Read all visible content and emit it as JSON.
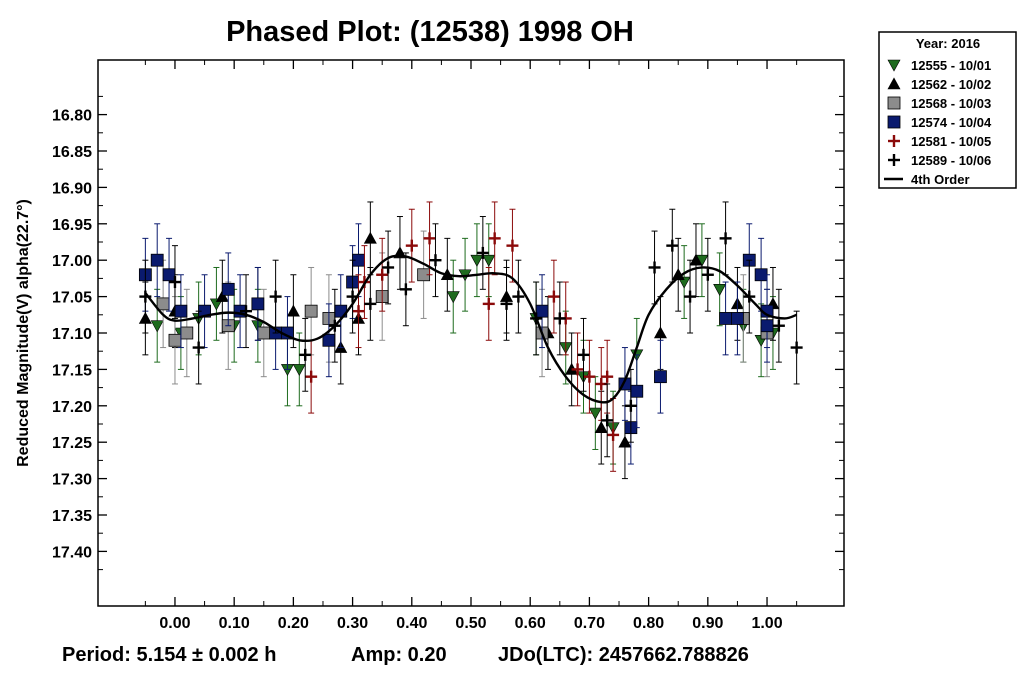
{
  "chart_data": {
    "type": "scatter",
    "title": "Phased Plot: (12538) 1998 OH",
    "xlabel": "",
    "ylabel": "Reduced Magnitude(V) alpha(22.7°)",
    "xlim": [
      -0.13,
      1.13
    ],
    "ylim": [
      17.475,
      16.725
    ],
    "y_inverted": true,
    "x_ticks": [
      "0.00",
      "0.10",
      "0.20",
      "0.30",
      "0.40",
      "0.50",
      "0.60",
      "0.70",
      "0.80",
      "0.90",
      "1.00"
    ],
    "y_ticks": [
      "16.80",
      "16.85",
      "16.90",
      "16.95",
      "17.00",
      "17.05",
      "17.10",
      "17.15",
      "17.20",
      "17.25",
      "17.30",
      "17.35",
      "17.40"
    ],
    "legend": {
      "title": "Year: 2016",
      "placement": "outside-top-right",
      "entries": [
        {
          "label": "12555 - 10/01",
          "marker": "triangle-down",
          "color": "#1e6b1e"
        },
        {
          "label": "12562 - 10/02",
          "marker": "triangle-up",
          "color": "#000000"
        },
        {
          "label": "12568 - 10/03",
          "marker": "square",
          "color": "#8c8c8c"
        },
        {
          "label": "12574 - 10/04",
          "marker": "square",
          "color": "#0a1a6e"
        },
        {
          "label": "12581 - 10/05",
          "marker": "plus",
          "color": "#8b0a0a"
        },
        {
          "label": "12589 - 10/06",
          "marker": "plus",
          "color": "#000000"
        },
        {
          "label": "4th Order",
          "marker": "line",
          "color": "#000000"
        }
      ]
    },
    "series": [
      {
        "name": "12555 - 10/01",
        "marker": "triangle-down",
        "color": "#1e6b1e",
        "err": 0.05,
        "points": [
          [
            -0.03,
            17.09
          ],
          [
            0.01,
            17.1
          ],
          [
            0.04,
            17.08
          ],
          [
            0.07,
            17.06
          ],
          [
            0.1,
            17.09
          ],
          [
            0.14,
            17.09
          ],
          [
            0.19,
            17.15
          ],
          [
            0.21,
            17.15
          ],
          [
            0.47,
            17.05
          ],
          [
            0.49,
            17.02
          ],
          [
            0.51,
            17.0
          ],
          [
            0.53,
            17.0
          ],
          [
            0.61,
            17.08
          ],
          [
            0.66,
            17.12
          ],
          [
            0.69,
            17.16
          ],
          [
            0.71,
            17.21
          ],
          [
            0.74,
            17.23
          ],
          [
            0.78,
            17.13
          ],
          [
            0.86,
            17.03
          ],
          [
            0.89,
            17.0
          ],
          [
            0.92,
            17.04
          ],
          [
            0.96,
            17.09
          ],
          [
            0.99,
            17.11
          ],
          [
            1.01,
            17.1
          ]
        ]
      },
      {
        "name": "12562 - 10/02",
        "marker": "triangle-up",
        "color": "#000000",
        "err": 0.05,
        "points": [
          [
            -0.05,
            17.08
          ],
          [
            0.0,
            17.07
          ],
          [
            0.08,
            17.05
          ],
          [
            0.14,
            17.06
          ],
          [
            0.2,
            17.07
          ],
          [
            0.28,
            17.12
          ],
          [
            0.31,
            17.08
          ],
          [
            0.33,
            16.97
          ],
          [
            0.38,
            16.99
          ],
          [
            0.46,
            17.02
          ],
          [
            0.56,
            17.05
          ],
          [
            0.63,
            17.1
          ],
          [
            0.67,
            17.15
          ],
          [
            0.72,
            17.23
          ],
          [
            0.76,
            17.25
          ],
          [
            0.82,
            17.1
          ],
          [
            0.85,
            17.02
          ],
          [
            0.88,
            17.0
          ],
          [
            0.95,
            17.06
          ],
          [
            1.01,
            17.06
          ]
        ]
      },
      {
        "name": "12568 - 10/03",
        "marker": "square",
        "color": "#8c8c8c",
        "err": 0.06,
        "points": [
          [
            -0.02,
            17.06
          ],
          [
            0.0,
            17.11
          ],
          [
            0.02,
            17.1
          ],
          [
            0.09,
            17.09
          ],
          [
            0.15,
            17.1
          ],
          [
            0.23,
            17.07
          ],
          [
            0.26,
            17.08
          ],
          [
            0.35,
            17.05
          ],
          [
            0.42,
            17.02
          ],
          [
            0.62,
            17.1
          ],
          [
            0.96,
            17.08
          ],
          [
            1.0,
            17.1
          ]
        ]
      },
      {
        "name": "12574 - 10/04",
        "marker": "square",
        "color": "#0a1a6e",
        "err": 0.05,
        "points": [
          [
            -0.05,
            17.02
          ],
          [
            -0.03,
            17.0
          ],
          [
            -0.01,
            17.02
          ],
          [
            0.01,
            17.07
          ],
          [
            0.05,
            17.07
          ],
          [
            0.09,
            17.04
          ],
          [
            0.11,
            17.07
          ],
          [
            0.14,
            17.06
          ],
          [
            0.17,
            17.1
          ],
          [
            0.19,
            17.1
          ],
          [
            0.26,
            17.11
          ],
          [
            0.28,
            17.07
          ],
          [
            0.3,
            17.03
          ],
          [
            0.31,
            17.0
          ],
          [
            0.62,
            17.07
          ],
          [
            0.76,
            17.17
          ],
          [
            0.77,
            17.23
          ],
          [
            0.78,
            17.18
          ],
          [
            0.82,
            17.16
          ],
          [
            0.93,
            17.08
          ],
          [
            0.95,
            17.08
          ],
          [
            0.97,
            17.0
          ],
          [
            0.99,
            17.02
          ],
          [
            1.0,
            17.07
          ],
          [
            1.0,
            17.09
          ]
        ]
      },
      {
        "name": "12581 - 10/05",
        "marker": "plus",
        "color": "#8b0a0a",
        "err": 0.05,
        "points": [
          [
            0.23,
            17.16
          ],
          [
            0.31,
            17.07
          ],
          [
            0.32,
            17.03
          ],
          [
            0.35,
            17.02
          ],
          [
            0.4,
            16.98
          ],
          [
            0.43,
            16.97
          ],
          [
            0.53,
            17.06
          ],
          [
            0.54,
            16.97
          ],
          [
            0.57,
            16.98
          ],
          [
            0.64,
            17.05
          ],
          [
            0.66,
            17.08
          ],
          [
            0.68,
            17.15
          ],
          [
            0.7,
            17.16
          ],
          [
            0.72,
            17.17
          ],
          [
            0.73,
            17.16
          ],
          [
            0.74,
            17.24
          ]
        ]
      },
      {
        "name": "12589 - 10/06",
        "marker": "plus",
        "color": "#000000",
        "err": 0.05,
        "points": [
          [
            -0.05,
            17.05
          ],
          [
            0.0,
            17.03
          ],
          [
            0.04,
            17.12
          ],
          [
            0.12,
            17.07
          ],
          [
            0.17,
            17.05
          ],
          [
            0.22,
            17.13
          ],
          [
            0.27,
            17.09
          ],
          [
            0.3,
            17.05
          ],
          [
            0.33,
            17.06
          ],
          [
            0.36,
            17.01
          ],
          [
            0.39,
            17.04
          ],
          [
            0.44,
            17.0
          ],
          [
            0.52,
            16.99
          ],
          [
            0.56,
            17.06
          ],
          [
            0.58,
            17.05
          ],
          [
            0.61,
            17.08
          ],
          [
            0.65,
            17.08
          ],
          [
            0.69,
            17.13
          ],
          [
            0.73,
            17.22
          ],
          [
            0.77,
            17.2
          ],
          [
            0.81,
            17.01
          ],
          [
            0.84,
            16.98
          ],
          [
            0.87,
            17.05
          ],
          [
            0.9,
            17.02
          ],
          [
            0.93,
            16.97
          ],
          [
            0.97,
            17.05
          ],
          [
            1.02,
            17.09
          ],
          [
            1.05,
            17.12
          ]
        ]
      }
    ],
    "fit_curve": {
      "name": "4th Order",
      "points": [
        [
          -0.05,
          17.045
        ],
        [
          -0.02,
          17.075
        ],
        [
          0.0,
          17.083
        ],
        [
          0.03,
          17.08
        ],
        [
          0.06,
          17.075
        ],
        [
          0.09,
          17.072
        ],
        [
          0.12,
          17.075
        ],
        [
          0.15,
          17.085
        ],
        [
          0.18,
          17.1
        ],
        [
          0.21,
          17.11
        ],
        [
          0.24,
          17.108
        ],
        [
          0.27,
          17.09
        ],
        [
          0.3,
          17.06
        ],
        [
          0.33,
          17.02
        ],
        [
          0.36,
          16.997
        ],
        [
          0.39,
          16.995
        ],
        [
          0.42,
          17.005
        ],
        [
          0.45,
          17.018
        ],
        [
          0.48,
          17.022
        ],
        [
          0.51,
          17.02
        ],
        [
          0.54,
          17.018
        ],
        [
          0.57,
          17.025
        ],
        [
          0.6,
          17.06
        ],
        [
          0.63,
          17.12
        ],
        [
          0.66,
          17.16
        ],
        [
          0.69,
          17.185
        ],
        [
          0.72,
          17.195
        ],
        [
          0.74,
          17.19
        ],
        [
          0.76,
          17.165
        ],
        [
          0.78,
          17.12
        ],
        [
          0.8,
          17.075
        ],
        [
          0.83,
          17.04
        ],
        [
          0.86,
          17.018
        ],
        [
          0.89,
          17.01
        ],
        [
          0.92,
          17.015
        ],
        [
          0.95,
          17.035
        ],
        [
          0.98,
          17.06
        ],
        [
          1.0,
          17.075
        ],
        [
          1.03,
          17.08
        ],
        [
          1.05,
          17.075
        ]
      ]
    }
  },
  "footer": {
    "period": "Period: 5.154 ± 0.002 h",
    "amp": "Amp: 0.20",
    "jdo": "JDo(LTC): 2457662.788826"
  }
}
